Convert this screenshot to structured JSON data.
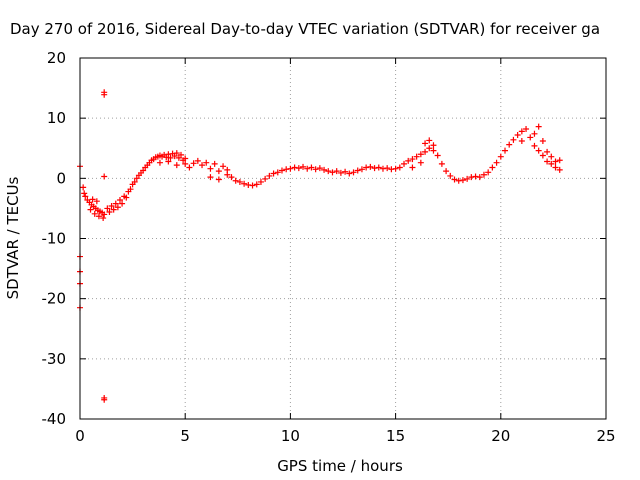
{
  "chart_data": {
    "type": "scatter",
    "title": "Day 270 of 2016, Sidereal Day-to-day VTEC variation (SDTVAR) for receiver ga",
    "xlabel": "GPS time / hours",
    "ylabel": "SDTVAR / TECUs",
    "xlim": [
      0,
      25
    ],
    "ylim": [
      -40,
      20
    ],
    "xticks": [
      0,
      5,
      10,
      15,
      20,
      25
    ],
    "yticks": [
      20,
      10,
      0,
      -10,
      -20,
      -30,
      -40
    ],
    "xtick_labels": [
      "0",
      "5",
      "10",
      "15",
      "20",
      "25"
    ],
    "ytick_labels": [
      "20",
      "10",
      "0",
      "-10",
      "-20",
      "-30",
      "-40"
    ],
    "grid": true,
    "marker": "plus",
    "color": "#ff0000",
    "series": [
      {
        "points": [
          {
            "x": 0.0,
            "y": 2.0
          },
          {
            "x": 0.0,
            "y": -13.0
          },
          {
            "x": 0.0,
            "y": -15.5
          },
          {
            "x": 0.0,
            "y": -17.5
          },
          {
            "x": 0.0,
            "y": -21.5
          },
          {
            "x": 1.15,
            "y": 14.3
          },
          {
            "x": 1.15,
            "y": 13.9
          },
          {
            "x": 1.15,
            "y": 0.3
          },
          {
            "x": 1.15,
            "y": -36.5
          },
          {
            "x": 1.15,
            "y": -36.8
          },
          {
            "x": 0.15,
            "y": -1.5
          },
          {
            "x": 0.2,
            "y": -2.5
          },
          {
            "x": 0.25,
            "y": -3.0
          },
          {
            "x": 0.35,
            "y": -3.6
          },
          {
            "x": 0.45,
            "y": -4.0
          },
          {
            "x": 0.55,
            "y": -4.4
          },
          {
            "x": 0.65,
            "y": -4.7
          },
          {
            "x": 0.75,
            "y": -5.0
          },
          {
            "x": 0.85,
            "y": -5.3
          },
          {
            "x": 0.95,
            "y": -5.5
          },
          {
            "x": 1.05,
            "y": -5.7
          },
          {
            "x": 1.15,
            "y": -6.0
          },
          {
            "x": 0.5,
            "y": -5.2
          },
          {
            "x": 0.7,
            "y": -5.9
          },
          {
            "x": 0.9,
            "y": -6.3
          },
          {
            "x": 1.1,
            "y": -6.6
          },
          {
            "x": 0.6,
            "y": -3.5
          },
          {
            "x": 0.8,
            "y": -3.8
          },
          {
            "x": 1.3,
            "y": -5.0
          },
          {
            "x": 1.4,
            "y": -5.6
          },
          {
            "x": 1.5,
            "y": -4.6
          },
          {
            "x": 1.6,
            "y": -5.2
          },
          {
            "x": 1.7,
            "y": -4.2
          },
          {
            "x": 1.8,
            "y": -4.8
          },
          {
            "x": 1.9,
            "y": -3.6
          },
          {
            "x": 2.0,
            "y": -4.2
          },
          {
            "x": 2.1,
            "y": -3.0
          },
          {
            "x": 2.2,
            "y": -3.2
          },
          {
            "x": 2.3,
            "y": -2.2
          },
          {
            "x": 2.4,
            "y": -1.8
          },
          {
            "x": 2.5,
            "y": -1.0
          },
          {
            "x": 2.6,
            "y": -0.6
          },
          {
            "x": 2.7,
            "y": 0.0
          },
          {
            "x": 2.8,
            "y": 0.5
          },
          {
            "x": 2.9,
            "y": 0.9
          },
          {
            "x": 3.0,
            "y": 1.3
          },
          {
            "x": 3.1,
            "y": 1.8
          },
          {
            "x": 3.2,
            "y": 2.2
          },
          {
            "x": 3.3,
            "y": 2.6
          },
          {
            "x": 3.4,
            "y": 3.0
          },
          {
            "x": 3.5,
            "y": 3.2
          },
          {
            "x": 3.6,
            "y": 3.5
          },
          {
            "x": 3.7,
            "y": 3.6
          },
          {
            "x": 3.8,
            "y": 3.8
          },
          {
            "x": 3.9,
            "y": 3.6
          },
          {
            "x": 4.0,
            "y": 3.9
          },
          {
            "x": 4.1,
            "y": 3.5
          },
          {
            "x": 4.2,
            "y": 4.0
          },
          {
            "x": 4.3,
            "y": 3.4
          },
          {
            "x": 4.4,
            "y": 4.1
          },
          {
            "x": 4.5,
            "y": 3.7
          },
          {
            "x": 4.6,
            "y": 4.2
          },
          {
            "x": 4.7,
            "y": 3.4
          },
          {
            "x": 4.8,
            "y": 3.9
          },
          {
            "x": 4.9,
            "y": 3.0
          },
          {
            "x": 5.0,
            "y": 3.3
          },
          {
            "x": 3.8,
            "y": 2.6
          },
          {
            "x": 4.2,
            "y": 2.8
          },
          {
            "x": 4.6,
            "y": 2.2
          },
          {
            "x": 5.0,
            "y": 2.4
          },
          {
            "x": 5.2,
            "y": 1.8
          },
          {
            "x": 5.4,
            "y": 2.5
          },
          {
            "x": 5.6,
            "y": 2.9
          },
          {
            "x": 5.8,
            "y": 2.2
          },
          {
            "x": 6.0,
            "y": 2.6
          },
          {
            "x": 6.2,
            "y": 1.6
          },
          {
            "x": 6.4,
            "y": 2.4
          },
          {
            "x": 6.6,
            "y": 1.2
          },
          {
            "x": 6.8,
            "y": 2.0
          },
          {
            "x": 7.0,
            "y": 0.6
          },
          {
            "x": 6.2,
            "y": 0.2
          },
          {
            "x": 6.6,
            "y": -0.2
          },
          {
            "x": 7.0,
            "y": 1.4
          },
          {
            "x": 7.2,
            "y": 0.2
          },
          {
            "x": 7.4,
            "y": -0.4
          },
          {
            "x": 7.6,
            "y": -0.6
          },
          {
            "x": 7.8,
            "y": -0.9
          },
          {
            "x": 8.0,
            "y": -1.1
          },
          {
            "x": 8.2,
            "y": -1.2
          },
          {
            "x": 8.4,
            "y": -1.0
          },
          {
            "x": 8.6,
            "y": -0.6
          },
          {
            "x": 8.8,
            "y": -0.1
          },
          {
            "x": 9.0,
            "y": 0.4
          },
          {
            "x": 9.2,
            "y": 0.8
          },
          {
            "x": 9.4,
            "y": 1.0
          },
          {
            "x": 9.6,
            "y": 1.3
          },
          {
            "x": 9.8,
            "y": 1.5
          },
          {
            "x": 10.0,
            "y": 1.6
          },
          {
            "x": 10.2,
            "y": 1.8
          },
          {
            "x": 10.4,
            "y": 1.7
          },
          {
            "x": 10.6,
            "y": 1.9
          },
          {
            "x": 10.8,
            "y": 1.6
          },
          {
            "x": 11.0,
            "y": 1.8
          },
          {
            "x": 11.2,
            "y": 1.5
          },
          {
            "x": 11.4,
            "y": 1.7
          },
          {
            "x": 11.6,
            "y": 1.4
          },
          {
            "x": 11.8,
            "y": 1.2
          },
          {
            "x": 12.0,
            "y": 1.0
          },
          {
            "x": 12.2,
            "y": 1.2
          },
          {
            "x": 12.4,
            "y": 0.9
          },
          {
            "x": 12.6,
            "y": 1.1
          },
          {
            "x": 12.8,
            "y": 0.8
          },
          {
            "x": 13.0,
            "y": 1.0
          },
          {
            "x": 13.2,
            "y": 1.3
          },
          {
            "x": 13.4,
            "y": 1.5
          },
          {
            "x": 13.6,
            "y": 1.8
          },
          {
            "x": 13.8,
            "y": 1.9
          },
          {
            "x": 14.0,
            "y": 1.7
          },
          {
            "x": 14.2,
            "y": 1.8
          },
          {
            "x": 14.4,
            "y": 1.6
          },
          {
            "x": 14.6,
            "y": 1.7
          },
          {
            "x": 14.8,
            "y": 1.5
          },
          {
            "x": 15.0,
            "y": 1.6
          },
          {
            "x": 15.2,
            "y": 1.8
          },
          {
            "x": 15.4,
            "y": 2.4
          },
          {
            "x": 15.6,
            "y": 2.9
          },
          {
            "x": 15.8,
            "y": 3.2
          },
          {
            "x": 16.0,
            "y": 3.6
          },
          {
            "x": 16.2,
            "y": 4.0
          },
          {
            "x": 16.4,
            "y": 4.4
          },
          {
            "x": 16.6,
            "y": 5.0
          },
          {
            "x": 16.8,
            "y": 4.6
          },
          {
            "x": 17.0,
            "y": 3.8
          },
          {
            "x": 16.4,
            "y": 5.8
          },
          {
            "x": 16.6,
            "y": 6.3
          },
          {
            "x": 16.8,
            "y": 5.5
          },
          {
            "x": 15.8,
            "y": 1.8
          },
          {
            "x": 16.2,
            "y": 2.6
          },
          {
            "x": 17.2,
            "y": 2.4
          },
          {
            "x": 17.4,
            "y": 1.2
          },
          {
            "x": 17.6,
            "y": 0.4
          },
          {
            "x": 17.8,
            "y": -0.2
          },
          {
            "x": 18.0,
            "y": -0.4
          },
          {
            "x": 18.2,
            "y": -0.3
          },
          {
            "x": 18.4,
            "y": -0.1
          },
          {
            "x": 18.6,
            "y": 0.2
          },
          {
            "x": 18.8,
            "y": 0.3
          },
          {
            "x": 19.0,
            "y": 0.2
          },
          {
            "x": 19.2,
            "y": 0.6
          },
          {
            "x": 19.4,
            "y": 1.0
          },
          {
            "x": 19.6,
            "y": 1.8
          },
          {
            "x": 19.8,
            "y": 2.6
          },
          {
            "x": 20.0,
            "y": 3.6
          },
          {
            "x": 20.2,
            "y": 4.6
          },
          {
            "x": 20.4,
            "y": 5.6
          },
          {
            "x": 20.6,
            "y": 6.4
          },
          {
            "x": 20.8,
            "y": 7.2
          },
          {
            "x": 21.0,
            "y": 7.8
          },
          {
            "x": 21.2,
            "y": 8.2
          },
          {
            "x": 21.0,
            "y": 6.2
          },
          {
            "x": 21.4,
            "y": 6.8
          },
          {
            "x": 21.6,
            "y": 7.4
          },
          {
            "x": 21.8,
            "y": 8.6
          },
          {
            "x": 21.6,
            "y": 5.4
          },
          {
            "x": 21.8,
            "y": 4.6
          },
          {
            "x": 22.0,
            "y": 3.8
          },
          {
            "x": 22.0,
            "y": 6.2
          },
          {
            "x": 22.2,
            "y": 4.4
          },
          {
            "x": 22.2,
            "y": 2.8
          },
          {
            "x": 22.4,
            "y": 2.4
          },
          {
            "x": 22.4,
            "y": 3.6
          },
          {
            "x": 22.6,
            "y": 1.8
          },
          {
            "x": 22.6,
            "y": 2.8
          },
          {
            "x": 22.8,
            "y": 1.4
          },
          {
            "x": 22.8,
            "y": 3.0
          }
        ]
      }
    ]
  }
}
